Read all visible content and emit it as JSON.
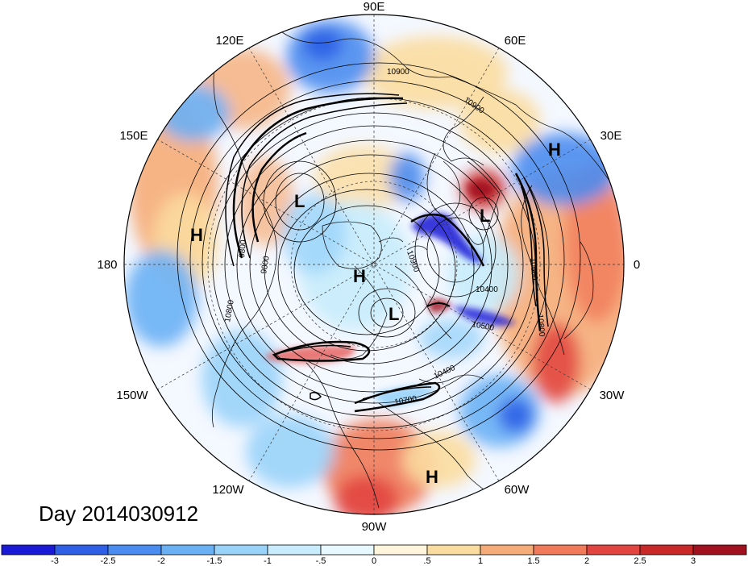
{
  "title": "Day 2014030912",
  "longitude_labels": [
    "90E",
    "60E",
    "30E",
    "0",
    "30W",
    "60W",
    "90W",
    "120W",
    "150W",
    "180",
    "150E",
    "120E"
  ],
  "pressure_centers": [
    {
      "type": "H",
      "lon": "30E region"
    },
    {
      "type": "H",
      "lon": "180 region"
    },
    {
      "type": "H",
      "lon": "pole"
    },
    {
      "type": "H",
      "lon": "60W region"
    },
    {
      "type": "L",
      "lon": "North Pacific"
    },
    {
      "type": "L",
      "lon": "Europe"
    },
    {
      "type": "L",
      "lon": "Canada"
    }
  ],
  "center_labels": [
    "H",
    "H",
    "H",
    "H",
    "L",
    "L",
    "L"
  ],
  "contour_labels": [
    "10900",
    "10900",
    "9800",
    "10800",
    "10400",
    "10500",
    "10400",
    "10700",
    "9800",
    "10600",
    "10800",
    "10900"
  ],
  "colorbar": {
    "tick_labels": [
      "-3",
      "-2.5",
      "-2",
      "-1.5",
      "-1",
      "-.5",
      "0",
      ".5",
      "1",
      "1.5",
      "2",
      "2.5",
      "3"
    ],
    "colors": [
      "#1a1ad6",
      "#2e5fe6",
      "#4a8cf0",
      "#6ab0f5",
      "#9ad3fa",
      "#c8ecfc",
      "#e8f8ff",
      "#fff5dc",
      "#fbdca0",
      "#f6ac78",
      "#f07a5a",
      "#e24440",
      "#c82828",
      "#a0101e"
    ]
  }
}
